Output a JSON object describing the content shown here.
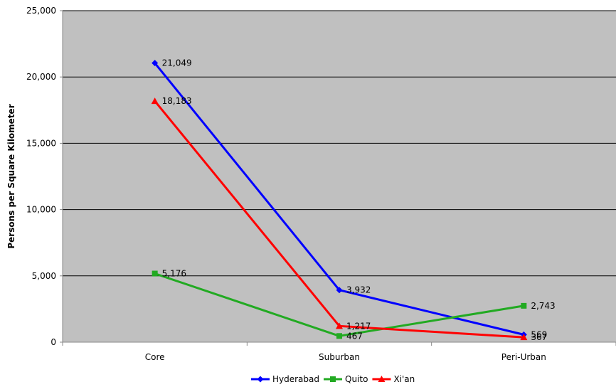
{
  "chart_data": {
    "type": "line",
    "title": "",
    "xlabel": "",
    "ylabel": "Persons per Square Kilometer",
    "categories": [
      "Core",
      "Suburban",
      "Peri-Urban"
    ],
    "ylim": [
      0,
      25000
    ],
    "yticks": [
      0,
      5000,
      10000,
      15000,
      20000,
      25000
    ],
    "ytick_labels": [
      "0",
      "5,000",
      "10,000",
      "15,000",
      "20,000",
      "25,000"
    ],
    "grid": "horizontal",
    "plot_background": "#c0c0c0",
    "legend_position": "bottom",
    "series": [
      {
        "name": "Hyderabad",
        "color": "#0000ff",
        "marker": "diamond",
        "values": [
          21049,
          3932,
          569
        ],
        "labels": [
          "21,049",
          "3,932",
          "569"
        ]
      },
      {
        "name": "Quito",
        "color": "#22aa22",
        "marker": "square",
        "values": [
          5176,
          467,
          2743
        ],
        "labels": [
          "5,176",
          "467",
          "2,743"
        ]
      },
      {
        "name": "Xi'an",
        "color": "#ff0000",
        "marker": "triangle",
        "values": [
          18183,
          1217,
          367
        ],
        "labels": [
          "18,183",
          "1,217",
          "367"
        ]
      }
    ]
  }
}
